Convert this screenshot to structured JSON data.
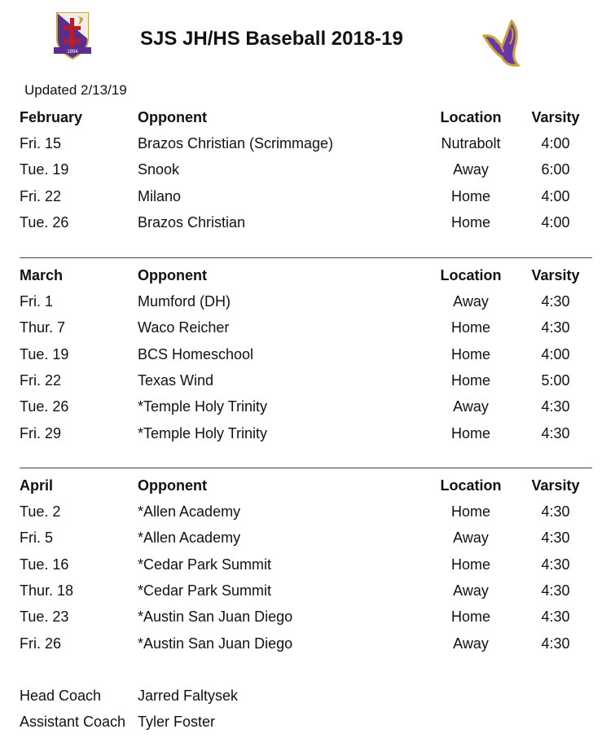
{
  "header": {
    "title": "SJS JH/HS Baseball 2018-19",
    "updated": "Updated 2/13/19",
    "crest_year": "1894"
  },
  "columns": {
    "opponent": "Opponent",
    "location": "Location",
    "varsity": "Varsity"
  },
  "sections": [
    {
      "month": "February",
      "games": [
        {
          "date": "Fri. 15",
          "opponent": "Brazos Christian (Scrimmage)",
          "location": "Nutrabolt",
          "time": "4:00"
        },
        {
          "date": "Tue. 19",
          "opponent": "Snook",
          "location": "Away",
          "time": "6:00"
        },
        {
          "date": "Fri. 22",
          "opponent": "Milano",
          "location": "Home",
          "time": "4:00"
        },
        {
          "date": "Tue. 26",
          "opponent": "Brazos Christian",
          "location": "Home",
          "time": "4:00"
        }
      ]
    },
    {
      "month": "March",
      "games": [
        {
          "date": "Fri. 1",
          "opponent": "Mumford (DH)",
          "location": "Away",
          "time": "4:30"
        },
        {
          "date": "Thur. 7",
          "opponent": "Waco Reicher",
          "location": "Home",
          "time": "4:30"
        },
        {
          "date": "Tue. 19",
          "opponent": "BCS Homeschool",
          "location": "Home",
          "time": "4:00"
        },
        {
          "date": "Fri. 22",
          "opponent": "Texas Wind",
          "location": "Home",
          "time": "5:00"
        },
        {
          "date": "Tue. 26",
          "opponent": "*Temple Holy Trinity",
          "location": "Away",
          "time": "4:30"
        },
        {
          "date": "Fri. 29",
          "opponent": "*Temple Holy Trinity",
          "location": "Home",
          "time": "4:30"
        }
      ]
    },
    {
      "month": "April",
      "games": [
        {
          "date": "Tue. 2",
          "opponent": "*Allen Academy",
          "location": "Home",
          "time": "4:30"
        },
        {
          "date": "Fri. 5",
          "opponent": "*Allen Academy",
          "location": "Away",
          "time": "4:30"
        },
        {
          "date": "Tue. 16",
          "opponent": "*Cedar Park Summit",
          "location": "Home",
          "time": "4:30"
        },
        {
          "date": "Thur. 18",
          "opponent": "*Cedar Park Summit",
          "location": "Away",
          "time": "4:30"
        },
        {
          "date": "Tue. 23",
          "opponent": "*Austin San Juan Diego",
          "location": "Home",
          "time": "4:30"
        },
        {
          "date": "Fri. 26",
          "opponent": "*Austin San Juan Diego",
          "location": "Away",
          "time": "4:30"
        }
      ]
    }
  ],
  "coaches": [
    {
      "role": "Head Coach",
      "name": "Jarred Faltysek"
    },
    {
      "role": "Assistant Coach",
      "name": "Tyler Foster"
    }
  ],
  "colors": {
    "purple": "#5b2d8e",
    "gold": "#c9a23a",
    "red": "#b3202a"
  }
}
